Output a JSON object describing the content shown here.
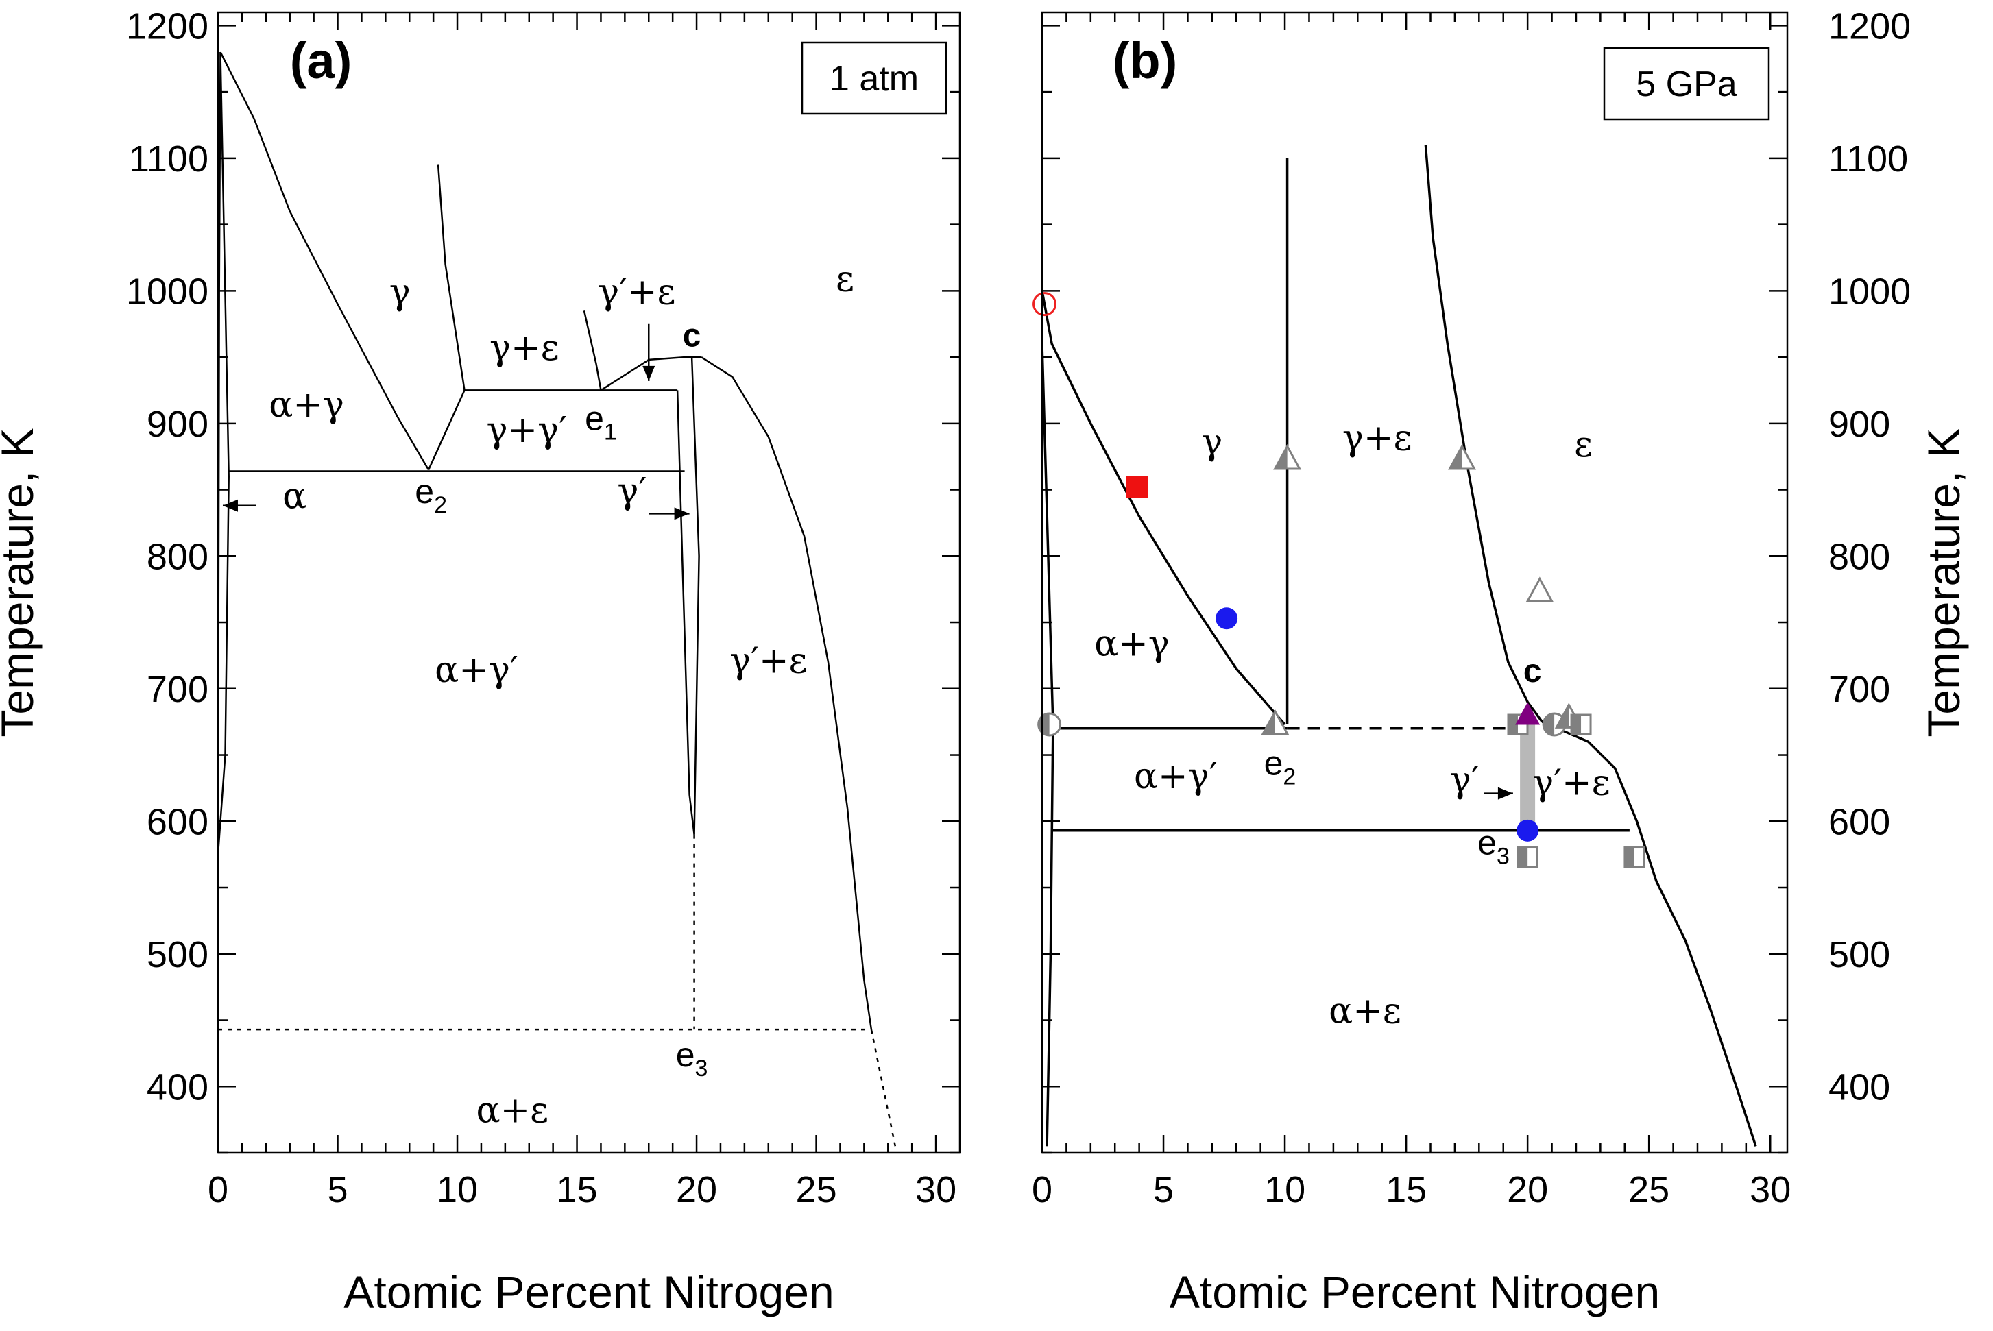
{
  "chart_data": [
    {
      "type": "phase-diagram",
      "panel_label": "(a)",
      "condition": "1 atm",
      "xlabel": "Atomic Percent Nitrogen",
      "ylabel": "Temperature, K",
      "xlim": [
        0,
        31
      ],
      "ylim": [
        350,
        1210
      ],
      "xticks": [
        "0",
        "5",
        "10",
        "15",
        "20",
        "25",
        "30"
      ],
      "yticks": [
        "400",
        "500",
        "600",
        "700",
        "800",
        "900",
        "1000",
        "1100",
        "1200"
      ],
      "phase_labels": [
        {
          "text": "γ",
          "x": 7.6,
          "y": 990
        },
        {
          "text": "γ+ε",
          "x": 12.8,
          "y": 948
        },
        {
          "text": "γ′+ε",
          "x": 17.5,
          "y": 990
        },
        {
          "text": "ε",
          "x": 26.2,
          "y": 1000
        },
        {
          "text": "α+γ",
          "x": 3.7,
          "y": 905
        },
        {
          "text": "γ+γ′",
          "x": 12.9,
          "y": 886
        },
        {
          "text": "α",
          "x": 3.2,
          "y": 836
        },
        {
          "text": "γ′",
          "x": 17.3,
          "y": 840
        },
        {
          "text": "α+γ′",
          "x": 10.8,
          "y": 705
        },
        {
          "text": "γ′+ε",
          "x": 23.0,
          "y": 712
        },
        {
          "text": "α+ε",
          "x": 12.3,
          "y": 373
        }
      ],
      "point_labels": [
        {
          "text": "e",
          "sub": "1",
          "x": 16.0,
          "y": 895
        },
        {
          "text": "e",
          "sub": "2",
          "x": 8.9,
          "y": 840
        },
        {
          "text": "e",
          "sub": "3",
          "x": 19.8,
          "y": 415
        },
        {
          "text": "c",
          "x": 19.8,
          "y": 958
        }
      ],
      "lines": [
        {
          "style": "solid",
          "points": [
            [
              0.0,
              575
            ],
            [
              0.05,
              1000
            ],
            [
              0.1,
              1180
            ]
          ]
        },
        {
          "style": "solid",
          "points": [
            [
              0.1,
              1180
            ],
            [
              0.45,
              860
            ],
            [
              0.3,
              650
            ],
            [
              0.0,
              575
            ]
          ]
        },
        {
          "style": "solid",
          "points": [
            [
              0.1,
              1180
            ],
            [
              1.5,
              1130
            ],
            [
              3,
              1060
            ],
            [
              5,
              990
            ],
            [
              7.5,
              905
            ],
            [
              8.8,
              865
            ]
          ]
        },
        {
          "style": "solid",
          "points": [
            [
              9.2,
              1095
            ],
            [
              9.5,
              1020
            ],
            [
              10.3,
              925
            ]
          ]
        },
        {
          "style": "solid",
          "points": [
            [
              8.8,
              865
            ],
            [
              10.3,
              925
            ],
            [
              19.2,
              925
            ]
          ]
        },
        {
          "style": "solid",
          "points": [
            [
              15.3,
              985
            ],
            [
              15.8,
              945
            ],
            [
              16.0,
              925
            ]
          ]
        },
        {
          "style": "solid",
          "points": [
            [
              16.0,
              925
            ],
            [
              18.0,
              948
            ],
            [
              19.5,
              950
            ],
            [
              20.2,
              950
            ]
          ]
        },
        {
          "style": "solid",
          "points": [
            [
              20.2,
              950
            ],
            [
              21.5,
              935
            ],
            [
              23.0,
              890
            ],
            [
              24.5,
              815
            ],
            [
              25.5,
              720
            ],
            [
              26.3,
              610
            ],
            [
              27.0,
              480
            ],
            [
              27.3,
              443
            ]
          ]
        },
        {
          "style": "solid",
          "points": [
            [
              0.4,
              864
            ],
            [
              19.5,
              864
            ]
          ]
        },
        {
          "style": "solid",
          "points": [
            [
              19.2,
              925
            ],
            [
              19.4,
              800
            ],
            [
              19.7,
              620
            ],
            [
              19.9,
              590
            ]
          ]
        },
        {
          "style": "solid",
          "points": [
            [
              19.8,
              950
            ],
            [
              20.1,
              800
            ],
            [
              19.9,
              590
            ]
          ]
        },
        {
          "style": "dotted",
          "points": [
            [
              19.9,
              590
            ],
            [
              19.9,
              443
            ]
          ]
        },
        {
          "style": "dotted",
          "points": [
            [
              0.0,
              443
            ],
            [
              27.3,
              443
            ]
          ]
        },
        {
          "style": "dotted",
          "points": [
            [
              27.3,
              443
            ],
            [
              28.3,
              355
            ]
          ]
        }
      ],
      "arrows": [
        {
          "from": [
            1.6,
            838
          ],
          "to": [
            0.2,
            838
          ]
        },
        {
          "from": [
            18.0,
            975
          ],
          "to": [
            18.0,
            932
          ]
        },
        {
          "from": [
            18.0,
            832
          ],
          "to": [
            19.7,
            832
          ]
        }
      ]
    },
    {
      "type": "phase-diagram",
      "panel_label": "(b)",
      "condition": "5 GPa",
      "xlabel": "Atomic Percent Nitrogen",
      "ylabel": "Temperature, K",
      "xlim": [
        0,
        30.7
      ],
      "ylim": [
        350,
        1210
      ],
      "xticks": [
        "0",
        "5",
        "10",
        "15",
        "20",
        "25",
        "30"
      ],
      "yticks": [
        "400",
        "500",
        "600",
        "700",
        "800",
        "900",
        "1000",
        "1100",
        "1200"
      ],
      "phase_labels": [
        {
          "text": "γ",
          "x": 7.0,
          "y": 877
        },
        {
          "text": "γ+ε",
          "x": 13.8,
          "y": 880
        },
        {
          "text": "ε",
          "x": 22.3,
          "y": 875
        },
        {
          "text": "α+γ",
          "x": 3.7,
          "y": 725
        },
        {
          "text": "α+γ′",
          "x": 5.5,
          "y": 625
        },
        {
          "text": "γ′+ε",
          "x": 21.8,
          "y": 620
        },
        {
          "text": "α+ε",
          "x": 13.3,
          "y": 448
        }
      ],
      "point_labels": [
        {
          "text": "e",
          "sub": "2",
          "x": 9.8,
          "y": 635
        },
        {
          "text": "e",
          "sub": "3",
          "x": 18.6,
          "y": 575
        },
        {
          "text": "c",
          "x": 20.2,
          "y": 705
        },
        {
          "text": "γ′",
          "x": 17.4,
          "y": 622
        }
      ],
      "lines": [
        {
          "style": "solid",
          "points": [
            [
              0.0,
              1000
            ],
            [
              0.4,
              960
            ],
            [
              2,
              900
            ],
            [
              4,
              830
            ],
            [
              6,
              770
            ],
            [
              8,
              715
            ],
            [
              10.0,
              673
            ]
          ]
        },
        {
          "style": "solid",
          "points": [
            [
              0.0,
              960
            ],
            [
              0.25,
              800
            ],
            [
              0.45,
              673
            ]
          ]
        },
        {
          "style": "solid",
          "points": [
            [
              0.45,
              673
            ],
            [
              0.35,
              500
            ],
            [
              0.2,
              355
            ]
          ]
        },
        {
          "style": "solid",
          "points": [
            [
              10.1,
              673
            ],
            [
              10.1,
              1100
            ]
          ]
        },
        {
          "style": "solid",
          "points": [
            [
              15.8,
              1110
            ],
            [
              16.1,
              1040
            ],
            [
              16.7,
              960
            ],
            [
              17.5,
              870
            ],
            [
              18.4,
              780
            ],
            [
              19.2,
              720
            ],
            [
              20.0,
              690
            ],
            [
              20.6,
              675
            ]
          ]
        },
        {
          "style": "solid",
          "points": [
            [
              20.6,
              675
            ],
            [
              22.5,
              660
            ],
            [
              23.6,
              640
            ],
            [
              24.5,
              600
            ],
            [
              25.3,
              555
            ],
            [
              26.5,
              510
            ],
            [
              27.5,
              460
            ],
            [
              28.6,
              400
            ],
            [
              29.4,
              355
            ]
          ]
        },
        {
          "style": "solid",
          "points": [
            [
              0.5,
              670
            ],
            [
              10.1,
              670
            ]
          ]
        },
        {
          "style": "dashed",
          "points": [
            [
              10.1,
              670
            ],
            [
              19.6,
              670
            ]
          ]
        },
        {
          "style": "solid",
          "points": [
            [
              0.4,
              593
            ],
            [
              24.2,
              593
            ]
          ]
        },
        {
          "style": "band",
          "points": [
            [
              20.0,
              673
            ],
            [
              20.0,
              593
            ]
          ]
        }
      ],
      "arrows": [
        {
          "from": [
            18.2,
            621
          ],
          "to": [
            19.4,
            621
          ]
        }
      ],
      "markers": [
        {
          "shape": "circle-open",
          "color": "#ee2222",
          "x": 0.1,
          "y": 990
        },
        {
          "shape": "square",
          "color": "#ee1111",
          "x": 3.9,
          "y": 852
        },
        {
          "shape": "circle",
          "color": "#1a1aee",
          "x": 7.6,
          "y": 753
        },
        {
          "shape": "triangle-half",
          "color": "#808080",
          "x": 10.1,
          "y": 873
        },
        {
          "shape": "triangle-half",
          "color": "#808080",
          "x": 17.3,
          "y": 873
        },
        {
          "shape": "triangle-open",
          "color": "#808080",
          "x": 20.5,
          "y": 773
        },
        {
          "shape": "triangle-half",
          "color": "#808080",
          "x": 9.6,
          "y": 673
        },
        {
          "shape": "circle-half",
          "color": "#808080",
          "x": 0.3,
          "y": 673
        },
        {
          "shape": "square-half",
          "color": "#808080",
          "x": 19.6,
          "y": 673
        },
        {
          "shape": "triangle",
          "color": "#800080",
          "x": 20.0,
          "y": 680
        },
        {
          "shape": "circle-half",
          "color": "#808080",
          "x": 21.1,
          "y": 673
        },
        {
          "shape": "triangle-half",
          "color": "#808080",
          "x": 21.7,
          "y": 678
        },
        {
          "shape": "square-half",
          "color": "#808080",
          "x": 22.2,
          "y": 673
        },
        {
          "shape": "circle",
          "color": "#1a1aee",
          "x": 20.0,
          "y": 593
        },
        {
          "shape": "square-half",
          "color": "#808080",
          "x": 20.0,
          "y": 573
        },
        {
          "shape": "square-half",
          "color": "#808080",
          "x": 24.4,
          "y": 573
        }
      ]
    }
  ]
}
